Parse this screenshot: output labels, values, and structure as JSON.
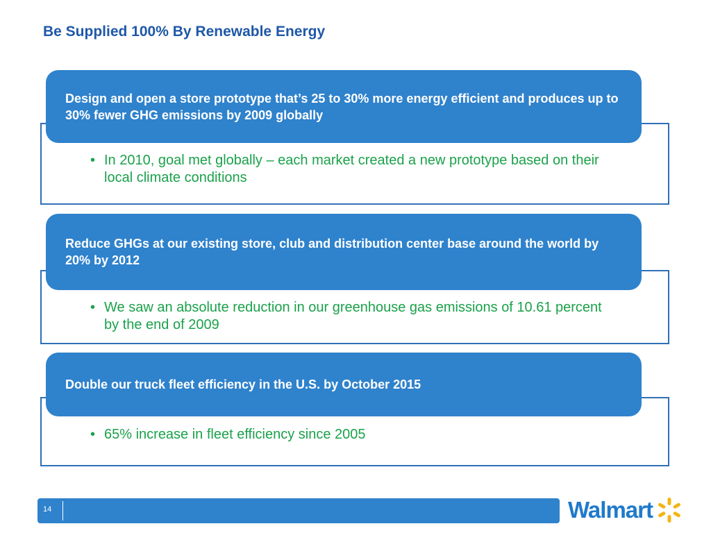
{
  "slide": {
    "title": "Be Supplied 100% By Renewable Energy",
    "page_number": "14"
  },
  "goals": [
    {
      "header": "Design and open a store prototype that’s 25 to 30% more energy efficient and produces up to 30% fewer GHG emissions by 2009 globally",
      "bullet": "In 2010, goal met globally – each market created a new prototype based on their local climate conditions"
    },
    {
      "header": "Reduce GHGs at our existing store, club and distribution center base around the world by 20% by 2012",
      "bullet": "We saw an absolute reduction in our greenhouse gas emissions of 10.61 percent by the end of 2009"
    },
    {
      "header": "Double our truck fleet efficiency in the U.S. by October 2015",
      "bullet": "65% increase in fleet efficiency since 2005"
    }
  ],
  "logo": {
    "text": "Walmart",
    "icon": "spark-icon"
  },
  "colors": {
    "title": "#1f58a8",
    "header_fill": "#2f82cc",
    "box_border": "#2f6fb8",
    "bullet_text": "#1aa14a",
    "logo_blue": "#1f7acb",
    "spark_yellow": "#f2b515"
  }
}
